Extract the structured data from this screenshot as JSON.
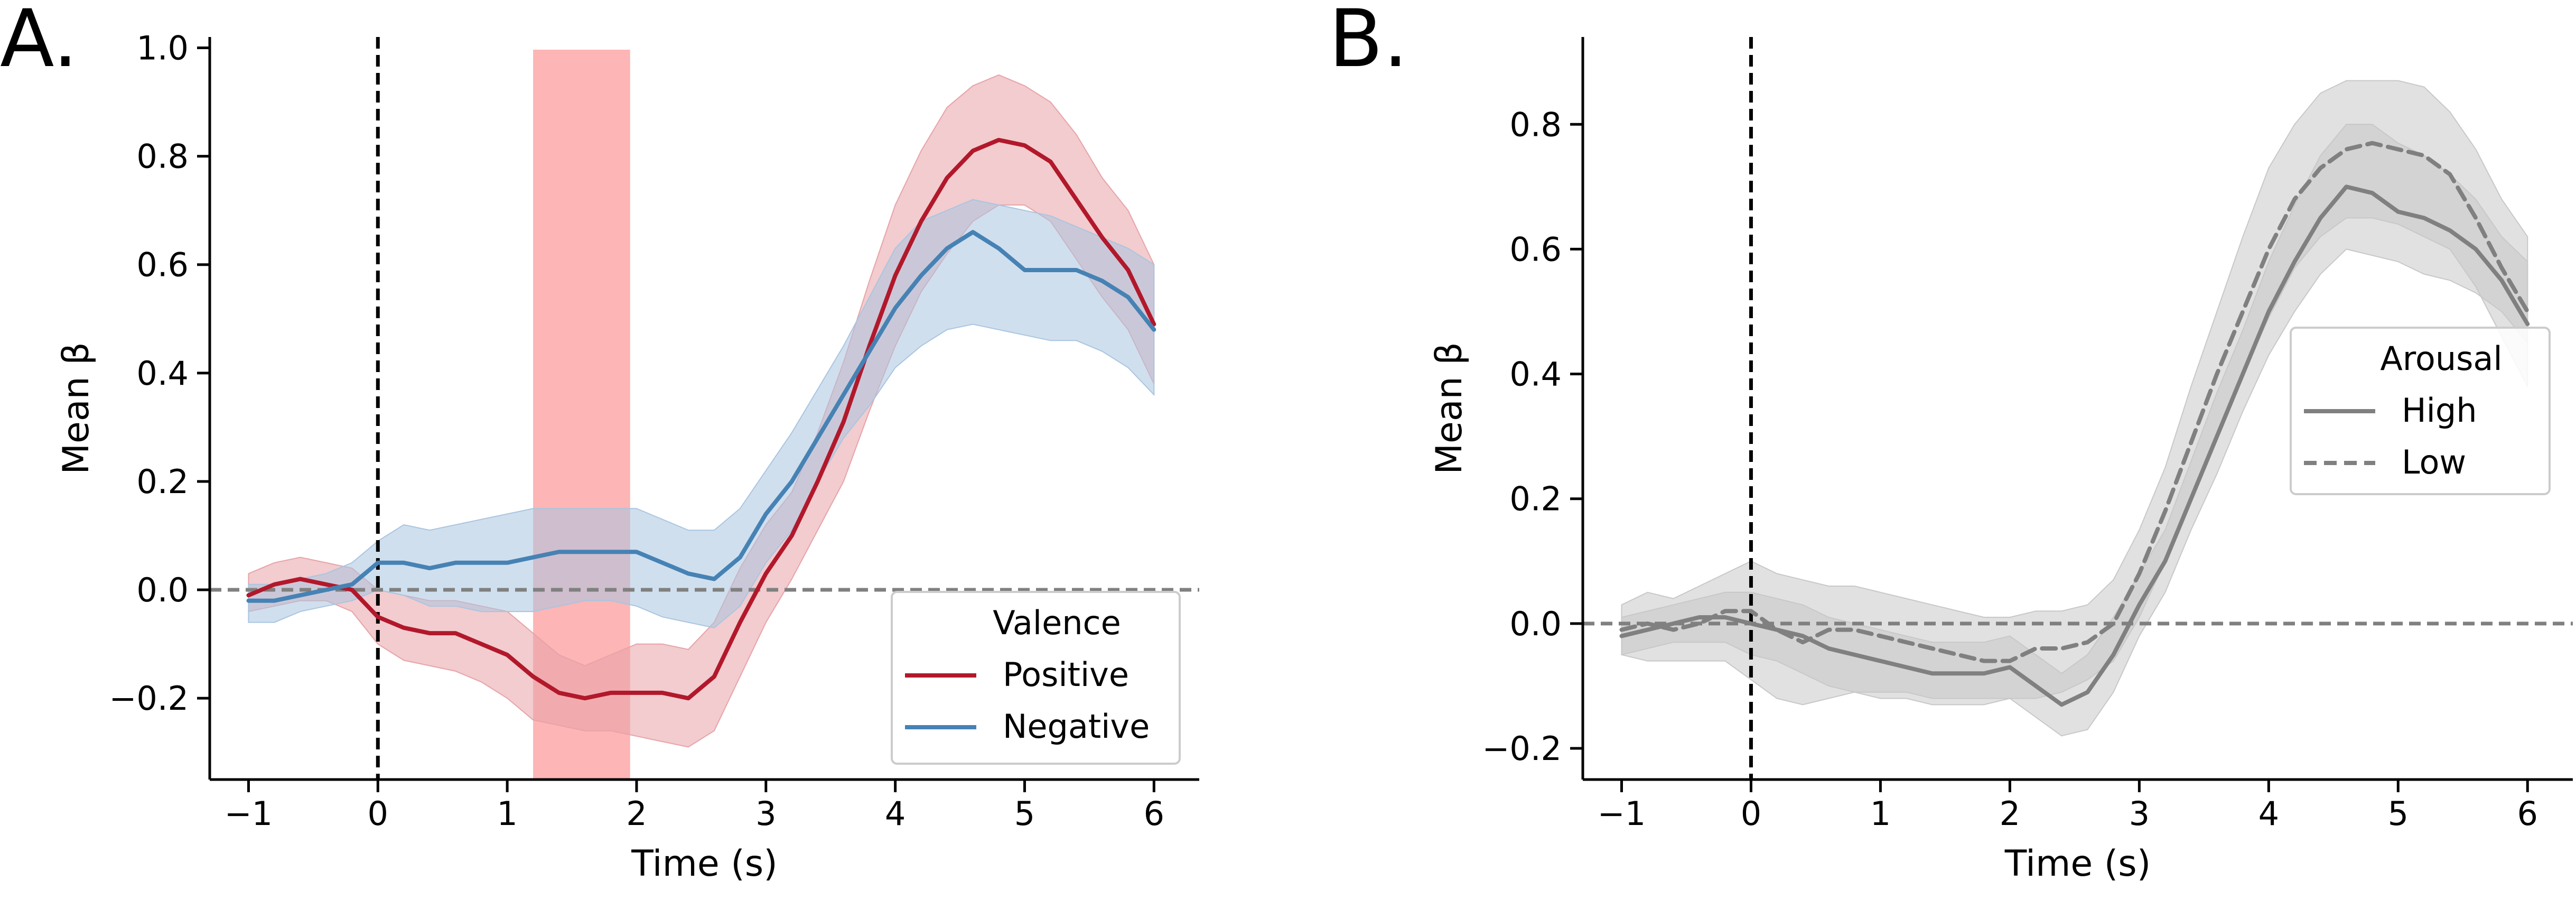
{
  "colors": {
    "positive": "#b2182b",
    "positive_band": "#e8a3a8",
    "negative": "#4682b4",
    "negative_band": "#a9c5e0",
    "highlight": "#fc8d8d",
    "arousal": "#808080",
    "arousal_band": "#c8c8c8",
    "zero_line": "#808080"
  },
  "chart_data": [
    {
      "panel_label": "A.",
      "type": "line",
      "xlabel": "Time (s)",
      "ylabel": "Mean β",
      "xlim": [
        -1.3,
        6.35
      ],
      "ylim": [
        -0.35,
        1.02
      ],
      "xticks": [
        -1,
        0,
        1,
        2,
        3,
        4,
        5,
        6
      ],
      "xtick_labels": [
        "−1",
        "0",
        "1",
        "2",
        "3",
        "4",
        "5",
        "6"
      ],
      "yticks": [
        -0.2,
        0.0,
        0.2,
        0.4,
        0.6,
        0.8,
        1.0
      ],
      "ytick_labels": [
        "−0.2",
        "0.0",
        "0.2",
        "0.4",
        "0.6",
        "0.8",
        "1.0"
      ],
      "highlight_span": [
        1.2,
        1.95
      ],
      "legend": {
        "title": "Valence",
        "position": "lower-right"
      },
      "series": [
        {
          "name": "Positive",
          "style": "solid",
          "x": [
            -1,
            -0.8,
            -0.6,
            -0.4,
            -0.2,
            0,
            0.2,
            0.4,
            0.6,
            0.8,
            1.0,
            1.2,
            1.4,
            1.6,
            1.8,
            2.0,
            2.2,
            2.4,
            2.6,
            2.8,
            3.0,
            3.2,
            3.4,
            3.6,
            3.8,
            4.0,
            4.2,
            4.4,
            4.6,
            4.8,
            5.0,
            5.2,
            5.4,
            5.6,
            5.8,
            6.0
          ],
          "values": [
            -0.01,
            0.01,
            0.02,
            0.01,
            0.0,
            -0.05,
            -0.07,
            -0.08,
            -0.08,
            -0.1,
            -0.12,
            -0.16,
            -0.19,
            -0.2,
            -0.19,
            -0.19,
            -0.19,
            -0.2,
            -0.16,
            -0.06,
            0.03,
            0.1,
            0.2,
            0.31,
            0.45,
            0.58,
            0.68,
            0.76,
            0.81,
            0.83,
            0.82,
            0.79,
            0.72,
            0.65,
            0.59,
            0.49
          ],
          "lower": [
            -0.04,
            -0.03,
            -0.02,
            -0.02,
            -0.04,
            -0.1,
            -0.13,
            -0.14,
            -0.15,
            -0.17,
            -0.2,
            -0.24,
            -0.25,
            -0.26,
            -0.26,
            -0.27,
            -0.28,
            -0.29,
            -0.26,
            -0.16,
            -0.06,
            0.02,
            0.11,
            0.2,
            0.33,
            0.45,
            0.55,
            0.62,
            0.68,
            0.71,
            0.71,
            0.68,
            0.61,
            0.54,
            0.48,
            0.38
          ],
          "upper": [
            0.03,
            0.05,
            0.06,
            0.05,
            0.04,
            0.0,
            -0.01,
            -0.02,
            -0.02,
            -0.03,
            -0.04,
            -0.08,
            -0.12,
            -0.14,
            -0.12,
            -0.1,
            -0.1,
            -0.11,
            -0.06,
            0.04,
            0.12,
            0.18,
            0.29,
            0.42,
            0.57,
            0.71,
            0.81,
            0.89,
            0.93,
            0.95,
            0.93,
            0.9,
            0.84,
            0.76,
            0.7,
            0.6
          ]
        },
        {
          "name": "Negative",
          "style": "solid",
          "x": [
            -1,
            -0.8,
            -0.6,
            -0.4,
            -0.2,
            0,
            0.2,
            0.4,
            0.6,
            0.8,
            1.0,
            1.2,
            1.4,
            1.6,
            1.8,
            2.0,
            2.2,
            2.4,
            2.6,
            2.8,
            3.0,
            3.2,
            3.4,
            3.6,
            3.8,
            4.0,
            4.2,
            4.4,
            4.6,
            4.8,
            5.0,
            5.2,
            5.4,
            5.6,
            5.8,
            6.0
          ],
          "values": [
            -0.02,
            -0.02,
            -0.01,
            0.0,
            0.01,
            0.05,
            0.05,
            0.04,
            0.05,
            0.05,
            0.05,
            0.06,
            0.07,
            0.07,
            0.07,
            0.07,
            0.05,
            0.03,
            0.02,
            0.06,
            0.14,
            0.2,
            0.28,
            0.36,
            0.44,
            0.52,
            0.58,
            0.63,
            0.66,
            0.63,
            0.59,
            0.59,
            0.59,
            0.57,
            0.54,
            0.48
          ],
          "lower": [
            -0.06,
            -0.06,
            -0.04,
            -0.03,
            -0.02,
            0.0,
            -0.01,
            -0.03,
            -0.03,
            -0.04,
            -0.04,
            -0.04,
            -0.03,
            -0.02,
            -0.02,
            -0.03,
            -0.05,
            -0.06,
            -0.07,
            -0.03,
            0.05,
            0.11,
            0.2,
            0.28,
            0.34,
            0.41,
            0.45,
            0.48,
            0.49,
            0.48,
            0.47,
            0.46,
            0.46,
            0.44,
            0.41,
            0.36
          ],
          "upper": [
            0.01,
            0.01,
            0.02,
            0.03,
            0.05,
            0.09,
            0.12,
            0.11,
            0.12,
            0.13,
            0.14,
            0.15,
            0.15,
            0.15,
            0.15,
            0.15,
            0.13,
            0.11,
            0.11,
            0.15,
            0.22,
            0.29,
            0.37,
            0.45,
            0.54,
            0.63,
            0.68,
            0.7,
            0.72,
            0.71,
            0.7,
            0.69,
            0.67,
            0.65,
            0.63,
            0.6
          ]
        }
      ]
    },
    {
      "panel_label": "B.",
      "type": "line",
      "xlabel": "Time (s)",
      "ylabel": "Mean β",
      "xlim": [
        -1.3,
        6.35
      ],
      "ylim": [
        -0.25,
        0.94
      ],
      "xticks": [
        -1,
        0,
        1,
        2,
        3,
        4,
        5,
        6
      ],
      "xtick_labels": [
        "−1",
        "0",
        "1",
        "2",
        "3",
        "4",
        "5",
        "6"
      ],
      "yticks": [
        -0.2,
        0.0,
        0.2,
        0.4,
        0.6,
        0.8
      ],
      "ytick_labels": [
        "−0.2",
        "0.0",
        "0.2",
        "0.4",
        "0.6",
        "0.8"
      ],
      "legend": {
        "title": "Arousal",
        "position": "upper-right"
      },
      "series": [
        {
          "name": "High",
          "style": "solid",
          "x": [
            -1,
            -0.8,
            -0.6,
            -0.4,
            -0.2,
            0,
            0.2,
            0.4,
            0.6,
            0.8,
            1.0,
            1.2,
            1.4,
            1.6,
            1.8,
            2.0,
            2.2,
            2.4,
            2.6,
            2.8,
            3.0,
            3.2,
            3.4,
            3.6,
            3.8,
            4.0,
            4.2,
            4.4,
            4.6,
            4.8,
            5.0,
            5.2,
            5.4,
            5.6,
            5.8,
            6.0
          ],
          "values": [
            -0.02,
            -0.01,
            0.0,
            0.01,
            0.01,
            0.0,
            -0.01,
            -0.02,
            -0.04,
            -0.05,
            -0.06,
            -0.07,
            -0.08,
            -0.08,
            -0.08,
            -0.07,
            -0.1,
            -0.13,
            -0.11,
            -0.05,
            0.03,
            0.1,
            0.2,
            0.3,
            0.4,
            0.5,
            0.58,
            0.65,
            0.7,
            0.69,
            0.66,
            0.65,
            0.63,
            0.6,
            0.55,
            0.48
          ],
          "lower": [
            -0.05,
            -0.04,
            -0.03,
            -0.03,
            -0.03,
            -0.05,
            -0.06,
            -0.08,
            -0.1,
            -0.11,
            -0.12,
            -0.12,
            -0.13,
            -0.13,
            -0.13,
            -0.12,
            -0.15,
            -0.18,
            -0.17,
            -0.11,
            -0.02,
            0.05,
            0.15,
            0.24,
            0.34,
            0.43,
            0.5,
            0.56,
            0.6,
            0.59,
            0.58,
            0.56,
            0.55,
            0.53,
            0.5,
            0.45
          ],
          "upper": [
            0.01,
            0.02,
            0.03,
            0.04,
            0.05,
            0.05,
            0.04,
            0.03,
            0.01,
            0.0,
            -0.01,
            -0.02,
            -0.03,
            -0.03,
            -0.03,
            -0.02,
            -0.05,
            -0.08,
            -0.05,
            0.01,
            0.08,
            0.15,
            0.26,
            0.37,
            0.47,
            0.58,
            0.67,
            0.75,
            0.8,
            0.8,
            0.77,
            0.75,
            0.72,
            0.68,
            0.62,
            0.58
          ]
        },
        {
          "name": "Low",
          "style": "dashed",
          "x": [
            -1,
            -0.8,
            -0.6,
            -0.4,
            -0.2,
            0,
            0.2,
            0.4,
            0.6,
            0.8,
            1.0,
            1.2,
            1.4,
            1.6,
            1.8,
            2.0,
            2.2,
            2.4,
            2.6,
            2.8,
            3.0,
            3.2,
            3.4,
            3.6,
            3.8,
            4.0,
            4.2,
            4.4,
            4.6,
            4.8,
            5.0,
            5.2,
            5.4,
            5.6,
            5.8,
            6.0
          ],
          "values": [
            -0.01,
            0.0,
            -0.01,
            0.0,
            0.02,
            0.02,
            -0.01,
            -0.03,
            -0.01,
            -0.01,
            -0.02,
            -0.03,
            -0.04,
            -0.05,
            -0.06,
            -0.06,
            -0.04,
            -0.04,
            -0.03,
            0.0,
            0.08,
            0.18,
            0.29,
            0.4,
            0.5,
            0.6,
            0.68,
            0.73,
            0.76,
            0.77,
            0.76,
            0.75,
            0.72,
            0.65,
            0.57,
            0.5
          ],
          "lower": [
            -0.05,
            -0.06,
            -0.06,
            -0.06,
            -0.06,
            -0.09,
            -0.12,
            -0.13,
            -0.12,
            -0.11,
            -0.11,
            -0.11,
            -0.12,
            -0.12,
            -0.12,
            -0.12,
            -0.12,
            -0.11,
            -0.09,
            -0.06,
            0.01,
            0.1,
            0.2,
            0.3,
            0.4,
            0.49,
            0.57,
            0.62,
            0.65,
            0.65,
            0.64,
            0.62,
            0.6,
            0.54,
            0.46,
            0.38
          ],
          "upper": [
            0.03,
            0.05,
            0.04,
            0.06,
            0.08,
            0.1,
            0.08,
            0.07,
            0.06,
            0.06,
            0.05,
            0.04,
            0.03,
            0.02,
            0.01,
            0.01,
            0.02,
            0.02,
            0.03,
            0.07,
            0.15,
            0.25,
            0.38,
            0.5,
            0.62,
            0.73,
            0.8,
            0.85,
            0.87,
            0.87,
            0.87,
            0.86,
            0.82,
            0.76,
            0.68,
            0.62
          ]
        }
      ]
    }
  ]
}
